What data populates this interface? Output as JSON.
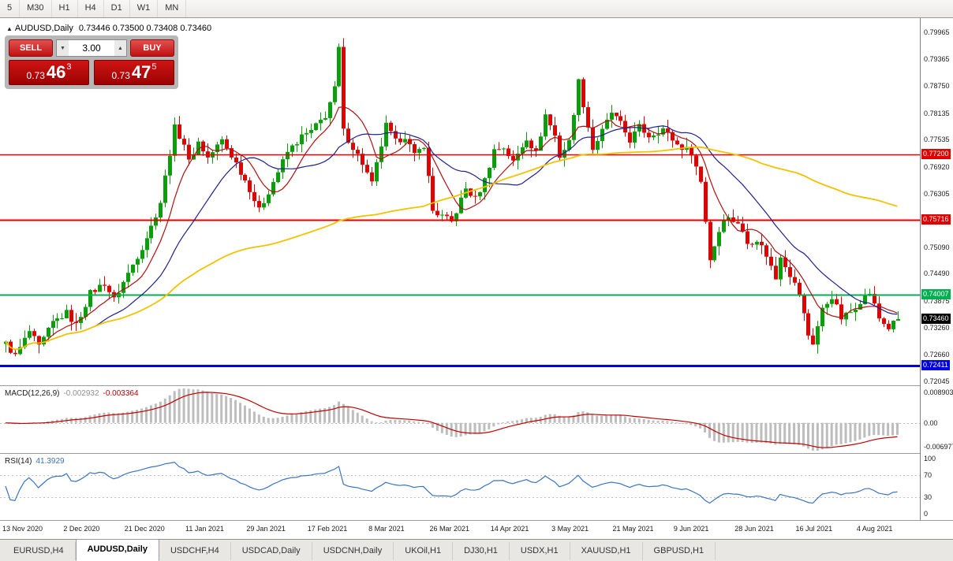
{
  "toolbar": {
    "timeframes": [
      "5",
      "M30",
      "H1",
      "H4",
      "D1",
      "W1",
      "MN"
    ]
  },
  "chart": {
    "title_marker": "▲",
    "title_symbol": "AUDUSD,Daily",
    "title_ohlc": "0.73446 0.73500 0.73408 0.73460"
  },
  "trade_panel": {
    "sell_label": "SELL",
    "buy_label": "BUY",
    "volume": "3.00",
    "spinner_down": "▼",
    "spinner_up": "▲",
    "sell_price": {
      "prefix": "0.73",
      "big": "46",
      "sup": "3"
    },
    "buy_price": {
      "prefix": "0.73",
      "big": "47",
      "sup": "5"
    }
  },
  "price_axis": {
    "ticks": [
      "0.79965",
      "0.79365",
      "0.78750",
      "0.78135",
      "0.77535",
      "0.76920",
      "0.76305",
      "0.75090",
      "0.74490",
      "0.73875",
      "0.73260",
      "0.72660",
      "0.72045"
    ],
    "badges": [
      {
        "label": "0.77200",
        "color": "#e00000"
      },
      {
        "label": "0.75716",
        "color": "#e00000"
      },
      {
        "label": "0.74007",
        "color": "#00b050"
      },
      {
        "label": "0.73460",
        "color": "#000000"
      },
      {
        "label": "0.72411",
        "color": "#0000e0"
      }
    ]
  },
  "chart_data": {
    "type": "candlestick",
    "symbol": "AUDUSD",
    "timeframe": "Daily",
    "ohlc_display": {
      "open": "0.73446",
      "high": "0.73500",
      "low": "0.73408",
      "close": "0.73460"
    },
    "current_price": 0.7346,
    "y_range": {
      "max": 0.8029,
      "min": 0.7196
    },
    "candle_count": 191,
    "x_offset": 7,
    "x_step": 5.95,
    "date_tick_interval": 13,
    "x_axis_dates": [
      "13 Nov 2020",
      "2 Dec 2020",
      "21 Dec 2020",
      "11 Jan 2021",
      "29 Jan 2021",
      "17 Feb 2021",
      "8 Mar 2021",
      "26 Mar 2021",
      "14 Apr 2021",
      "3 May 2021",
      "21 May 2021",
      "9 Jun 2021",
      "28 Jun 2021",
      "16 Jul 2021",
      "4 Aug 2021"
    ],
    "up_color": "#0b9e0b",
    "down_color": "#dd0404",
    "price_anchors": [
      [
        0,
        0.729
      ],
      [
        2,
        0.7262
      ],
      [
        5,
        0.7318
      ],
      [
        7,
        0.7282
      ],
      [
        10,
        0.7338
      ],
      [
        13,
        0.736
      ],
      [
        15,
        0.7332
      ],
      [
        18,
        0.7405
      ],
      [
        21,
        0.7428
      ],
      [
        23,
        0.739
      ],
      [
        26,
        0.745
      ],
      [
        29,
        0.751
      ],
      [
        31,
        0.7556
      ],
      [
        33,
        0.7612
      ],
      [
        36,
        0.778
      ],
      [
        38,
        0.7745
      ],
      [
        39,
        0.7702
      ],
      [
        41,
        0.7748
      ],
      [
        43,
        0.7712
      ],
      [
        46,
        0.7752
      ],
      [
        49,
        0.77
      ],
      [
        52,
        0.7642
      ],
      [
        54,
        0.7592
      ],
      [
        57,
        0.7658
      ],
      [
        60,
        0.7725
      ],
      [
        63,
        0.776
      ],
      [
        65,
        0.7772
      ],
      [
        68,
        0.7808
      ],
      [
        70,
        0.7868
      ],
      [
        71,
        0.796
      ],
      [
        72,
        0.7772
      ],
      [
        74,
        0.7736
      ],
      [
        76,
        0.77
      ],
      [
        78,
        0.7652
      ],
      [
        81,
        0.7785
      ],
      [
        83,
        0.7748
      ],
      [
        85,
        0.7762
      ],
      [
        87,
        0.7716
      ],
      [
        89,
        0.7742
      ],
      [
        91,
        0.7592
      ],
      [
        95,
        0.7566
      ],
      [
        98,
        0.7642
      ],
      [
        100,
        0.7618
      ],
      [
        102,
        0.7662
      ],
      [
        104,
        0.773
      ],
      [
        106,
        0.7736
      ],
      [
        108,
        0.7702
      ],
      [
        111,
        0.7758
      ],
      [
        113,
        0.7722
      ],
      [
        115,
        0.781
      ],
      [
        117,
        0.7762
      ],
      [
        118,
        0.7716
      ],
      [
        120,
        0.7748
      ],
      [
        122,
        0.7885
      ],
      [
        125,
        0.7732
      ],
      [
        127,
        0.7772
      ],
      [
        129,
        0.7815
      ],
      [
        131,
        0.7788
      ],
      [
        133,
        0.7752
      ],
      [
        135,
        0.7782
      ],
      [
        137,
        0.7762
      ],
      [
        140,
        0.7778
      ],
      [
        143,
        0.7742
      ],
      [
        146,
        0.7725
      ],
      [
        148,
        0.7658
      ],
      [
        150,
        0.7482
      ],
      [
        153,
        0.7578
      ],
      [
        156,
        0.7566
      ],
      [
        158,
        0.7518
      ],
      [
        160,
        0.7528
      ],
      [
        162,
        0.7492
      ],
      [
        164,
        0.7438
      ],
      [
        165,
        0.7492
      ],
      [
        167,
        0.7448
      ],
      [
        169,
        0.7402
      ],
      [
        171,
        0.731
      ],
      [
        172,
        0.7292
      ],
      [
        174,
        0.7368
      ],
      [
        176,
        0.7398
      ],
      [
        178,
        0.7348
      ],
      [
        180,
        0.7362
      ],
      [
        182,
        0.7388
      ],
      [
        184,
        0.7406
      ],
      [
        186,
        0.7348
      ],
      [
        188,
        0.7326
      ],
      [
        190,
        0.7346
      ]
    ],
    "moving_averages": [
      {
        "period": 8,
        "color": "#b01010",
        "width": 1.2
      },
      {
        "period": 20,
        "color": "#202090",
        "width": 1.2
      },
      {
        "period": 90,
        "color": "#f2c200",
        "width": 1.8
      }
    ],
    "levels": [
      {
        "price": 0.772,
        "color": "#e00000",
        "width": 1.5
      },
      {
        "price": 0.75716,
        "color": "#e00000",
        "width": 2
      },
      {
        "price": 0.74007,
        "color": "#00b050",
        "width": 2
      },
      {
        "price": 0.72411,
        "color": "#0000e0",
        "width": 3
      }
    ],
    "macd": {
      "label": "MACD(12,26,9)",
      "values_text": [
        "-0.002932",
        "-0.003364"
      ],
      "params": [
        12,
        26,
        9
      ],
      "axis_labels": [
        "0.008903",
        "0.00",
        "-0.006977"
      ],
      "axis_max": 0.008903,
      "axis_min": -0.006977,
      "histogram_color": "#bdbdbd",
      "signal_color": "#c00000"
    },
    "rsi": {
      "label": "RSI(14)",
      "value_text": "41.3929",
      "period": 14,
      "levels": [
        70,
        30
      ],
      "axis_labels": [
        "100",
        "70",
        "30",
        "0"
      ],
      "line_color": "#3973c4"
    }
  },
  "tabs": [
    {
      "label": "EURUSD,H4",
      "active": false
    },
    {
      "label": "AUDUSD,Daily",
      "active": true
    },
    {
      "label": "USDCHF,H4",
      "active": false
    },
    {
      "label": "USDCAD,Daily",
      "active": false
    },
    {
      "label": "USDCNH,Daily",
      "active": false
    },
    {
      "label": "UKOil,H1",
      "active": false
    },
    {
      "label": "DJ30,H1",
      "active": false
    },
    {
      "label": "USDX,H1",
      "active": false
    },
    {
      "label": "XAUUSD,H1",
      "active": false
    },
    {
      "label": "GBPUSD,H1",
      "active": false
    }
  ]
}
